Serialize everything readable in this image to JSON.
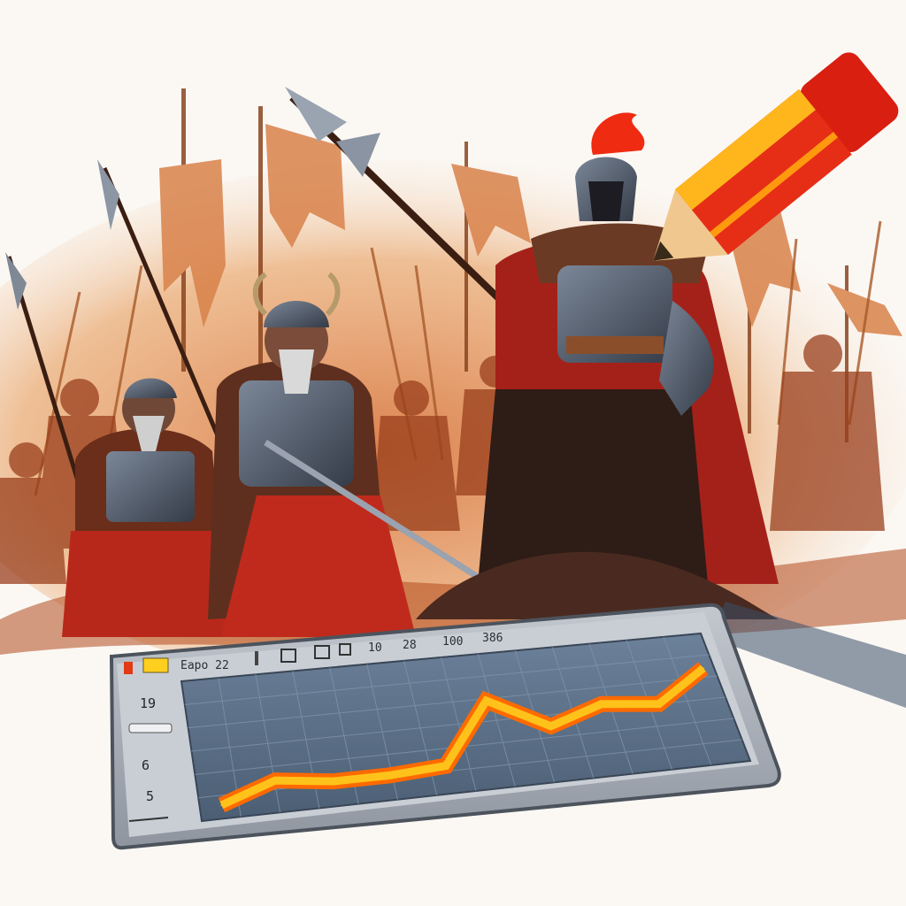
{
  "colors": {
    "background": "#fbf8f4",
    "dust": "#e7a36a",
    "warrior_red": "#c8251a",
    "armor_steel": "#4f5a6b",
    "panel_frame": "#8e959f",
    "chart_bg": "#5b6f86",
    "grid": "#7f93a9",
    "line_outer": "#ff6a00",
    "line_inner": "#ffc21a",
    "pencil_red": "#e62e17",
    "pencil_yellow": "#ffb61c",
    "pencil_wood": "#f0c78e"
  },
  "icons": {
    "toolbar": [
      "red-flag-icon",
      "yellow-swatch-icon",
      "bar-icon",
      "frame-icon",
      "pencil-box-icon",
      "square-icon"
    ],
    "scene": [
      "banner-icon",
      "spear-icon",
      "halberd-icon",
      "pencil-icon"
    ]
  },
  "toolbar": {
    "label": "Eapo 22",
    "readout_a": "10",
    "readout_b": "28",
    "readout_c": "100",
    "readout_d": "386"
  },
  "side_labels": {
    "top": "19",
    "middle": "6",
    "bottom": "5"
  },
  "chart_data": {
    "type": "line",
    "title": "",
    "xlabel": "",
    "ylabel": "",
    "x": [
      0,
      1,
      2,
      3,
      4,
      5,
      6,
      7,
      8,
      9
    ],
    "values": [
      2,
      18,
      12,
      12,
      15,
      68,
      40,
      55,
      50,
      78
    ],
    "ylim": [
      0,
      100
    ],
    "grid": true
  }
}
